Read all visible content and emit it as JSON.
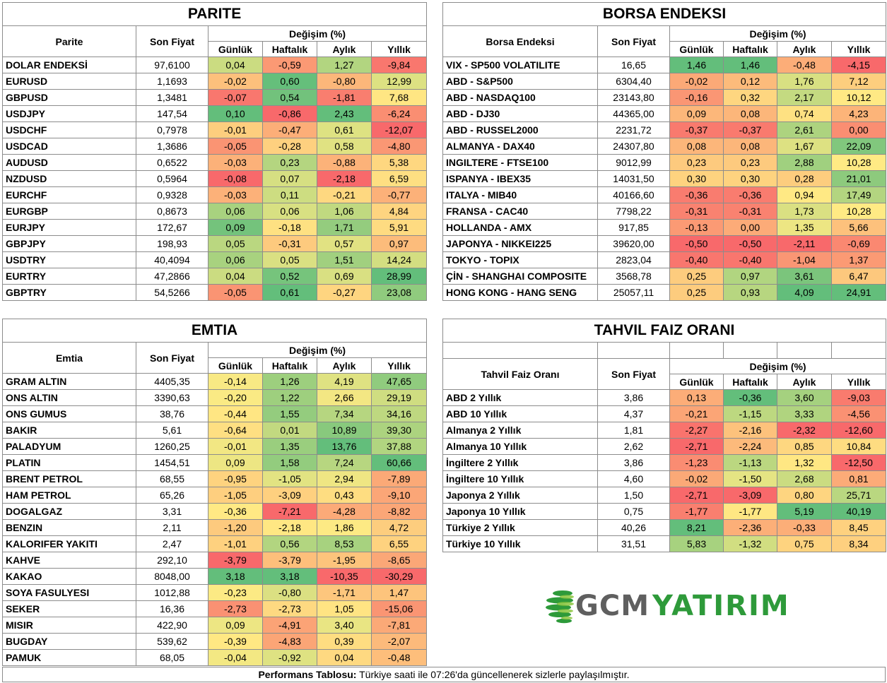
{
  "change_header": "Değişim (%)",
  "period_labels": [
    "Günlük",
    "Haftalık",
    "Aylık",
    "Yıllık"
  ],
  "parite": {
    "title": "PARITE",
    "name_header": "Parite",
    "price_header": "Son Fiyat",
    "rows": [
      {
        "name": "DOLAR ENDEKSİ",
        "price": "97,6100",
        "d": "0,04",
        "w": "-0,59",
        "m": "1,27",
        "y": "-9,84"
      },
      {
        "name": "EURUSD",
        "price": "1,1693",
        "d": "-0,02",
        "w": "0,60",
        "m": "-0,80",
        "y": "12,99"
      },
      {
        "name": "GBPUSD",
        "price": "1,3481",
        "d": "-0,07",
        "w": "0,54",
        "m": "-1,81",
        "y": "7,68"
      },
      {
        "name": "USDJPY",
        "price": "147,54",
        "d": "0,10",
        "w": "-0,86",
        "m": "2,43",
        "y": "-6,24"
      },
      {
        "name": "USDCHF",
        "price": "0,7978",
        "d": "-0,01",
        "w": "-0,47",
        "m": "0,61",
        "y": "-12,07"
      },
      {
        "name": "USDCAD",
        "price": "1,3686",
        "d": "-0,05",
        "w": "-0,28",
        "m": "0,58",
        "y": "-4,80"
      },
      {
        "name": "AUDUSD",
        "price": "0,6522",
        "d": "-0,03",
        "w": "0,23",
        "m": "-0,88",
        "y": "5,38"
      },
      {
        "name": "NZDUSD",
        "price": "0,5964",
        "d": "-0,08",
        "w": "0,07",
        "m": "-2,18",
        "y": "6,59"
      },
      {
        "name": "EURCHF",
        "price": "0,9328",
        "d": "-0,03",
        "w": "0,11",
        "m": "-0,21",
        "y": "-0,77"
      },
      {
        "name": "EURGBP",
        "price": "0,8673",
        "d": "0,06",
        "w": "0,06",
        "m": "1,06",
        "y": "4,84"
      },
      {
        "name": "EURJPY",
        "price": "172,67",
        "d": "0,09",
        "w": "-0,18",
        "m": "1,71",
        "y": "5,91"
      },
      {
        "name": "GBPJPY",
        "price": "198,93",
        "d": "0,05",
        "w": "-0,31",
        "m": "0,57",
        "y": "0,97"
      },
      {
        "name": "USDTRY",
        "price": "40,4094",
        "d": "0,06",
        "w": "0,05",
        "m": "1,51",
        "y": "14,24"
      },
      {
        "name": "EURTRY",
        "price": "47,2866",
        "d": "0,04",
        "w": "0,52",
        "m": "0,69",
        "y": "28,99"
      },
      {
        "name": "GBPTRY",
        "price": "54,5266",
        "d": "-0,05",
        "w": "0,61",
        "m": "-0,27",
        "y": "23,08"
      }
    ]
  },
  "borsa": {
    "title": "BORSA ENDEKSI",
    "name_header": "Borsa Endeksi",
    "price_header": "Son Fiyat",
    "rows": [
      {
        "name": "VIX  - SP500 VOLATILITE",
        "price": "16,65",
        "d": "1,46",
        "w": "1,46",
        "m": "-0,48",
        "y": "-4,15"
      },
      {
        "name": "ABD - S&P500",
        "price": "6304,40",
        "d": "-0,02",
        "w": "0,12",
        "m": "1,76",
        "y": "7,12"
      },
      {
        "name": "ABD - NASDAQ100",
        "price": "23143,80",
        "d": "-0,16",
        "w": "0,32",
        "m": "2,17",
        "y": "10,12"
      },
      {
        "name": "ABD - DJ30",
        "price": "44365,00",
        "d": "0,09",
        "w": "0,08",
        "m": "0,74",
        "y": "4,23"
      },
      {
        "name": "ABD - RUSSEL2000",
        "price": "2231,72",
        "d": "-0,37",
        "w": "-0,37",
        "m": "2,61",
        "y": "0,00"
      },
      {
        "name": "ALMANYA - DAX40",
        "price": "24307,80",
        "d": "0,08",
        "w": "0,08",
        "m": "1,67",
        "y": "22,09"
      },
      {
        "name": "INGILTERE - FTSE100",
        "price": "9012,99",
        "d": "0,23",
        "w": "0,23",
        "m": "2,88",
        "y": "10,28"
      },
      {
        "name": "ISPANYA - IBEX35",
        "price": "14031,50",
        "d": "0,30",
        "w": "0,30",
        "m": "0,28",
        "y": "21,01"
      },
      {
        "name": "ITALYA - MIB40",
        "price": "40166,60",
        "d": "-0,36",
        "w": "-0,36",
        "m": "0,94",
        "y": "17,49"
      },
      {
        "name": "FRANSA - CAC40",
        "price": "7798,22",
        "d": "-0,31",
        "w": "-0,31",
        "m": "1,73",
        "y": "10,28"
      },
      {
        "name": "HOLLANDA - AMX",
        "price": "917,85",
        "d": "-0,13",
        "w": "0,00",
        "m": "1,35",
        "y": "5,66"
      },
      {
        "name": "JAPONYA - NIKKEI225",
        "price": "39620,00",
        "d": "-0,50",
        "w": "-0,50",
        "m": "-2,11",
        "y": "-0,69"
      },
      {
        "name": "TOKYO - TOPIX",
        "price": "2823,04",
        "d": "-0,40",
        "w": "-0,40",
        "m": "-1,04",
        "y": "1,37"
      },
      {
        "name": "ÇİN - SHANGHAI COMPOSITE",
        "price": "3568,78",
        "d": "0,25",
        "w": "0,97",
        "m": "3,61",
        "y": "6,47"
      },
      {
        "name": "HONG KONG - HANG SENG",
        "price": "25057,11",
        "d": "0,25",
        "w": "0,93",
        "m": "4,09",
        "y": "24,91"
      }
    ]
  },
  "emtia": {
    "title": "EMTIA",
    "name_header": "Emtia",
    "price_header": "Son Fiyat",
    "rows": [
      {
        "name": "GRAM ALTIN",
        "price": "4405,35",
        "d": "-0,14",
        "w": "1,26",
        "m": "4,19",
        "y": "47,65"
      },
      {
        "name": "ONS ALTIN",
        "price": "3390,63",
        "d": "-0,20",
        "w": "1,22",
        "m": "2,66",
        "y": "29,19"
      },
      {
        "name": "ONS GUMUS",
        "price": "38,76",
        "d": "-0,44",
        "w": "1,55",
        "m": "7,34",
        "y": "34,16"
      },
      {
        "name": "BAKIR",
        "price": "5,61",
        "d": "-0,64",
        "w": "0,01",
        "m": "10,89",
        "y": "39,30"
      },
      {
        "name": "PALADYUM",
        "price": "1260,25",
        "d": "-0,01",
        "w": "1,35",
        "m": "13,76",
        "y": "37,88"
      },
      {
        "name": "PLATIN",
        "price": "1454,51",
        "d": "0,09",
        "w": "1,58",
        "m": "7,24",
        "y": "60,66"
      },
      {
        "name": "BRENT PETROL",
        "price": "68,55",
        "d": "-0,95",
        "w": "-1,05",
        "m": "2,94",
        "y": "-7,89"
      },
      {
        "name": "HAM PETROL",
        "price": "65,26",
        "d": "-1,05",
        "w": "-3,09",
        "m": "0,43",
        "y": "-9,10"
      },
      {
        "name": "DOGALGAZ",
        "price": "3,31",
        "d": "-0,36",
        "w": "-7,21",
        "m": "-4,28",
        "y": "-8,82"
      },
      {
        "name": "BENZIN",
        "price": "2,11",
        "d": "-1,20",
        "w": "-2,18",
        "m": "1,86",
        "y": "4,72"
      },
      {
        "name": "KALORIFER YAKITI",
        "price": "2,47",
        "d": "-1,01",
        "w": "0,56",
        "m": "8,53",
        "y": "6,55"
      },
      {
        "name": "KAHVE",
        "price": "292,10",
        "d": "-3,79",
        "w": "-3,79",
        "m": "-1,95",
        "y": "-8,65"
      },
      {
        "name": "KAKAO",
        "price": "8048,00",
        "d": "3,18",
        "w": "3,18",
        "m": "-10,35",
        "y": "-30,29"
      },
      {
        "name": "SOYA FASULYESI",
        "price": "1012,88",
        "d": "-0,23",
        "w": "-0,80",
        "m": "-1,71",
        "y": "1,47"
      },
      {
        "name": "SEKER",
        "price": "16,36",
        "d": "-2,73",
        "w": "-2,73",
        "m": "1,05",
        "y": "-15,06"
      },
      {
        "name": "MISIR",
        "price": "422,90",
        "d": "0,09",
        "w": "-4,91",
        "m": "3,40",
        "y": "-7,81"
      },
      {
        "name": "BUGDAY",
        "price": "539,62",
        "d": "-0,39",
        "w": "-4,83",
        "m": "0,39",
        "y": "-2,07"
      },
      {
        "name": "PAMUK",
        "price": "68,05",
        "d": "-0,04",
        "w": "-0,92",
        "m": "0,04",
        "y": "-0,48"
      }
    ]
  },
  "tahvil": {
    "title": "TAHVIL FAIZ ORANI",
    "name_header": "Tahvil Faiz Oranı",
    "price_header": "Son Fiyat",
    "rows": [
      {
        "name": "ABD 2 Yıllık",
        "price": "3,86",
        "d": "0,13",
        "w": "-0,36",
        "m": "3,60",
        "y": "-9,03"
      },
      {
        "name": "ABD 10 Yıllık",
        "price": "4,37",
        "d": "-0,21",
        "w": "-1,15",
        "m": "3,33",
        "y": "-4,56"
      },
      {
        "name": "Almanya 2 Yıllık",
        "price": "1,81",
        "d": "-2,27",
        "w": "-2,16",
        "m": "-2,32",
        "y": "-12,60"
      },
      {
        "name": "Almanya 10 Yıllık",
        "price": "2,62",
        "d": "-2,71",
        "w": "-2,24",
        "m": "0,85",
        "y": "10,84"
      },
      {
        "name": "İngiltere 2 Yıllık",
        "price": "3,86",
        "d": "-1,23",
        "w": "-1,13",
        "m": "1,32",
        "y": "-12,50"
      },
      {
        "name": "İngiltere 10 Yıllık",
        "price": "4,60",
        "d": "-0,02",
        "w": "-1,50",
        "m": "2,68",
        "y": "0,81"
      },
      {
        "name": "Japonya 2 Yıllık",
        "price": "1,50",
        "d": "-2,71",
        "w": "-3,09",
        "m": "0,80",
        "y": "25,71"
      },
      {
        "name": "Japonya 10 Yıllık",
        "price": "0,75",
        "d": "-1,77",
        "w": "-1,77",
        "m": "5,19",
        "y": "40,19"
      },
      {
        "name": "Türkiye 2 Yıllık",
        "price": "40,26",
        "d": "8,21",
        "w": "-2,36",
        "m": "-0,33",
        "y": "8,45"
      },
      {
        "name": "Türkiye 10 Yıllık",
        "price": "31,51",
        "d": "5,83",
        "w": "-1,32",
        "m": "0,75",
        "y": "8,34"
      }
    ]
  },
  "logo": {
    "text_gcm": "GCM",
    "text_yatirim": "YATIRIM"
  },
  "footer": {
    "bold": "Performans Tablosu:",
    "text": " Türkiye saati ile 07:26'da güncellenerek sizlerle paylaşılmıştır."
  },
  "colors": {
    "red": "#f8696b",
    "yellow": "#ffeb84",
    "green": "#63be7b"
  }
}
